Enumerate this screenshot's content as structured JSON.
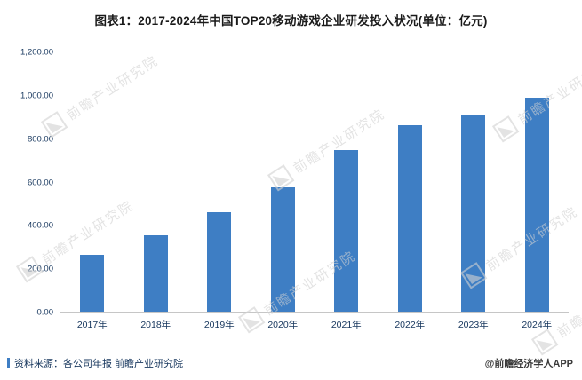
{
  "title": "图表1：2017-2024年中国TOP20移动游戏企业研发投入状况(单位：亿元)",
  "chart_data": {
    "type": "bar",
    "categories": [
      "2017年",
      "2018年",
      "2019年",
      "2020年",
      "2021年",
      "2022年",
      "2023年",
      "2024年"
    ],
    "values": [
      265,
      355,
      460,
      575,
      750,
      865,
      910,
      990
    ],
    "title": "图表1：2017-2024年中国TOP20移动游戏企业研发投入状况(单位：亿元)",
    "xlabel": "",
    "ylabel": "",
    "ylim": [
      0,
      1200
    ],
    "ytick_step": 200,
    "ytick_labels": [
      "0.00",
      "200.00",
      "400.00",
      "600.00",
      "800.00",
      "1,000.00",
      "1,200.00"
    ],
    "grid": false,
    "legend": "none"
  },
  "footer": {
    "source": "资料来源：各公司年报 前瞻产业研究院",
    "attribution": "@前瞻经济学人APP"
  },
  "watermark": {
    "text": "前瞻产业研究院"
  },
  "colors": {
    "bar": "#3E7EC4",
    "axis_label": "#16365D",
    "title": "#1A1A1A",
    "axis_line": "#C6C6C6",
    "source_marker": "#3E7EC4"
  }
}
